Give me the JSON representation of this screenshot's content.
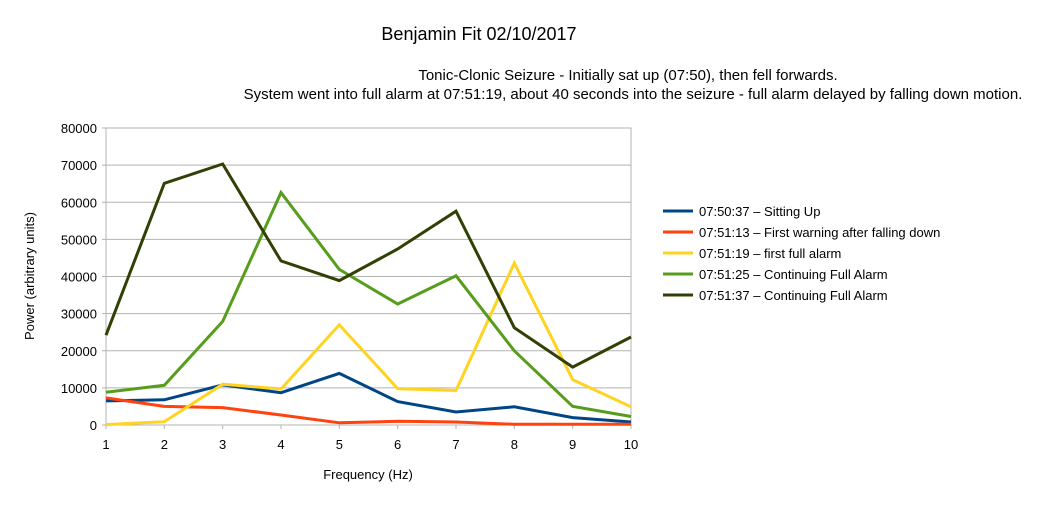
{
  "chart_data": {
    "type": "line",
    "title": "Benjamin Fit 02/10/2017",
    "subtitle_lines": [
      "Tonic-Clonic Seizure - Initially sat up (07:50), then fell forwards.",
      "System went into full alarm at 07:51:19, about 40 seconds into the seizure - full alarm delayed by falling down motion."
    ],
    "xlabel": "Frequency (Hz)",
    "ylabel": "Power (arbitrary units)",
    "x": [
      1,
      2,
      3,
      4,
      5,
      6,
      7,
      8,
      9,
      10
    ],
    "xlim": [
      1,
      10
    ],
    "ylim": [
      0,
      80000
    ],
    "yticks": [
      0,
      10000,
      20000,
      30000,
      40000,
      50000,
      60000,
      70000,
      80000
    ],
    "grid": "horizontal",
    "legend_position": "right",
    "series": [
      {
        "name": "07:50:37 – Sitting Up",
        "color": "#004586",
        "values": [
          6500,
          6800,
          10800,
          8700,
          13900,
          6300,
          3500,
          4900,
          2000,
          800
        ]
      },
      {
        "name": "07:51:13 – First warning after falling down",
        "color": "#ff420e",
        "values": [
          7300,
          5000,
          4700,
          2700,
          600,
          1000,
          800,
          200,
          200,
          200
        ]
      },
      {
        "name": "07:51:19 – first full alarm",
        "color": "#ffd320",
        "values": [
          100,
          900,
          11000,
          9700,
          27000,
          9800,
          9300,
          43600,
          12200,
          4900
        ]
      },
      {
        "name": "07:51:25 – Continuing Full Alarm",
        "color": "#579d1c",
        "values": [
          8800,
          10700,
          27900,
          62600,
          41900,
          32600,
          40200,
          20000,
          5000,
          2300
        ]
      },
      {
        "name": "07:51:37 – Continuing Full Alarm",
        "color": "#314004",
        "values": [
          24200,
          65100,
          70300,
          44200,
          38900,
          47400,
          57600,
          26200,
          15600,
          23700
        ]
      }
    ]
  }
}
